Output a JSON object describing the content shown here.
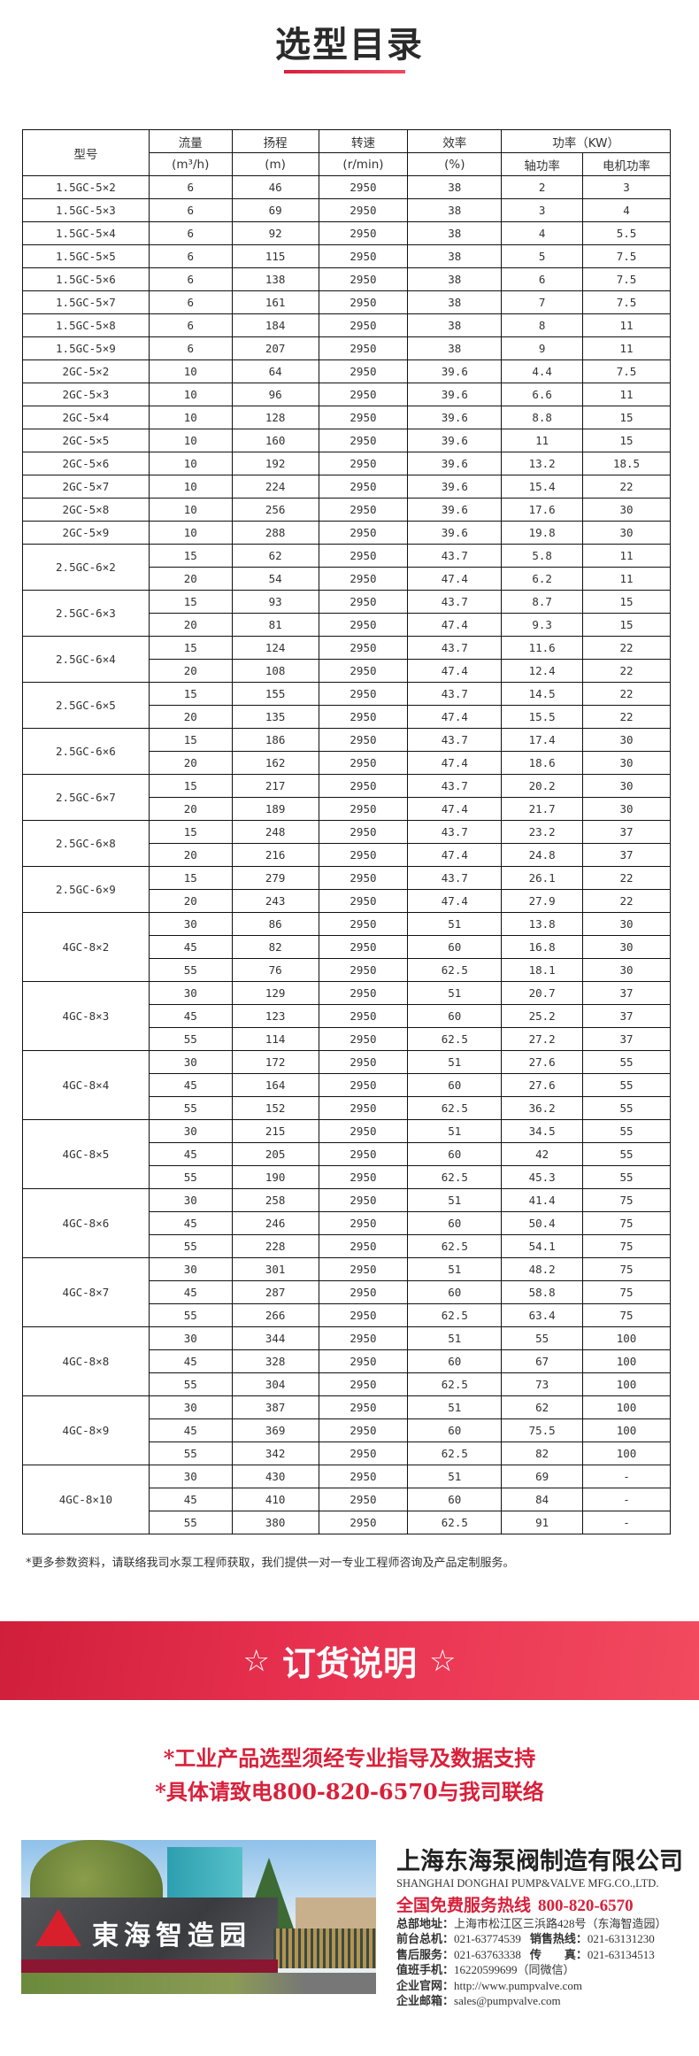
{
  "header": {
    "title": "选型目录",
    "accent_color": "#e0283f"
  },
  "table": {
    "headers": {
      "model": "型号",
      "flow": "流量",
      "head": "扬程",
      "speed": "转速",
      "efficiency": "效率",
      "power": "功率（KW）"
    },
    "units": {
      "flow": "(m³/h)",
      "head": "(m)",
      "speed": "(r/min)",
      "efficiency": "(%)",
      "shaft_power": "轴功率",
      "motor_power": "电机功率"
    },
    "groups": [
      {
        "model": "1.5GC-5×2",
        "rows": [
          [
            "6",
            "46",
            "2950",
            "38",
            "2",
            "3"
          ]
        ]
      },
      {
        "model": "1.5GC-5×3",
        "rows": [
          [
            "6",
            "69",
            "2950",
            "38",
            "3",
            "4"
          ]
        ]
      },
      {
        "model": "1.5GC-5×4",
        "rows": [
          [
            "6",
            "92",
            "2950",
            "38",
            "4",
            "5.5"
          ]
        ]
      },
      {
        "model": "1.5GC-5×5",
        "rows": [
          [
            "6",
            "115",
            "2950",
            "38",
            "5",
            "7.5"
          ]
        ]
      },
      {
        "model": "1.5GC-5×6",
        "rows": [
          [
            "6",
            "138",
            "2950",
            "38",
            "6",
            "7.5"
          ]
        ]
      },
      {
        "model": "1.5GC-5×7",
        "rows": [
          [
            "6",
            "161",
            "2950",
            "38",
            "7",
            "7.5"
          ]
        ]
      },
      {
        "model": "1.5GC-5×8",
        "rows": [
          [
            "6",
            "184",
            "2950",
            "38",
            "8",
            "11"
          ]
        ]
      },
      {
        "model": "1.5GC-5×9",
        "rows": [
          [
            "6",
            "207",
            "2950",
            "38",
            "9",
            "11"
          ]
        ]
      },
      {
        "model": "2GC-5×2",
        "rows": [
          [
            "10",
            "64",
            "2950",
            "39.6",
            "4.4",
            "7.5"
          ]
        ]
      },
      {
        "model": "2GC-5×3",
        "rows": [
          [
            "10",
            "96",
            "2950",
            "39.6",
            "6.6",
            "11"
          ]
        ]
      },
      {
        "model": "2GC-5×4",
        "rows": [
          [
            "10",
            "128",
            "2950",
            "39.6",
            "8.8",
            "15"
          ]
        ]
      },
      {
        "model": "2GC-5×5",
        "rows": [
          [
            "10",
            "160",
            "2950",
            "39.6",
            "11",
            "15"
          ]
        ]
      },
      {
        "model": "2GC-5×6",
        "rows": [
          [
            "10",
            "192",
            "2950",
            "39.6",
            "13.2",
            "18.5"
          ]
        ]
      },
      {
        "model": "2GC-5×7",
        "rows": [
          [
            "10",
            "224",
            "2950",
            "39.6",
            "15.4",
            "22"
          ]
        ]
      },
      {
        "model": "2GC-5×8",
        "rows": [
          [
            "10",
            "256",
            "2950",
            "39.6",
            "17.6",
            "30"
          ]
        ]
      },
      {
        "model": "2GC-5×9",
        "rows": [
          [
            "10",
            "288",
            "2950",
            "39.6",
            "19.8",
            "30"
          ]
        ]
      },
      {
        "model": "2.5GC-6×2",
        "rows": [
          [
            "15",
            "62",
            "2950",
            "43.7",
            "5.8",
            "11"
          ],
          [
            "20",
            "54",
            "2950",
            "47.4",
            "6.2",
            "11"
          ]
        ]
      },
      {
        "model": "2.5GC-6×3",
        "rows": [
          [
            "15",
            "93",
            "2950",
            "43.7",
            "8.7",
            "15"
          ],
          [
            "20",
            "81",
            "2950",
            "47.4",
            "9.3",
            "15"
          ]
        ]
      },
      {
        "model": "2.5GC-6×4",
        "rows": [
          [
            "15",
            "124",
            "2950",
            "43.7",
            "11.6",
            "22"
          ],
          [
            "20",
            "108",
            "2950",
            "47.4",
            "12.4",
            "22"
          ]
        ]
      },
      {
        "model": "2.5GC-6×5",
        "rows": [
          [
            "15",
            "155",
            "2950",
            "43.7",
            "14.5",
            "22"
          ],
          [
            "20",
            "135",
            "2950",
            "47.4",
            "15.5",
            "22"
          ]
        ]
      },
      {
        "model": "2.5GC-6×6",
        "rows": [
          [
            "15",
            "186",
            "2950",
            "43.7",
            "17.4",
            "30"
          ],
          [
            "20",
            "162",
            "2950",
            "47.4",
            "18.6",
            "30"
          ]
        ]
      },
      {
        "model": "2.5GC-6×7",
        "rows": [
          [
            "15",
            "217",
            "2950",
            "43.7",
            "20.2",
            "30"
          ],
          [
            "20",
            "189",
            "2950",
            "47.4",
            "21.7",
            "30"
          ]
        ]
      },
      {
        "model": "2.5GC-6×8",
        "rows": [
          [
            "15",
            "248",
            "2950",
            "43.7",
            "23.2",
            "37"
          ],
          [
            "20",
            "216",
            "2950",
            "47.4",
            "24.8",
            "37"
          ]
        ]
      },
      {
        "model": "2.5GC-6×9",
        "rows": [
          [
            "15",
            "279",
            "2950",
            "43.7",
            "26.1",
            "22"
          ],
          [
            "20",
            "243",
            "2950",
            "47.4",
            "27.9",
            "22"
          ]
        ]
      },
      {
        "model": "4GC-8×2",
        "rows": [
          [
            "30",
            "86",
            "2950",
            "51",
            "13.8",
            "30"
          ],
          [
            "45",
            "82",
            "2950",
            "60",
            "16.8",
            "30"
          ],
          [
            "55",
            "76",
            "2950",
            "62.5",
            "18.1",
            "30"
          ]
        ]
      },
      {
        "model": "4GC-8×3",
        "rows": [
          [
            "30",
            "129",
            "2950",
            "51",
            "20.7",
            "37"
          ],
          [
            "45",
            "123",
            "2950",
            "60",
            "25.2",
            "37"
          ],
          [
            "55",
            "114",
            "2950",
            "62.5",
            "27.2",
            "37"
          ]
        ]
      },
      {
        "model": "4GC-8×4",
        "rows": [
          [
            "30",
            "172",
            "2950",
            "51",
            "27.6",
            "55"
          ],
          [
            "45",
            "164",
            "2950",
            "60",
            "27.6",
            "55"
          ],
          [
            "55",
            "152",
            "2950",
            "62.5",
            "36.2",
            "55"
          ]
        ]
      },
      {
        "model": "4GC-8×5",
        "rows": [
          [
            "30",
            "215",
            "2950",
            "51",
            "34.5",
            "55"
          ],
          [
            "45",
            "205",
            "2950",
            "60",
            "42",
            "55"
          ],
          [
            "55",
            "190",
            "2950",
            "62.5",
            "45.3",
            "55"
          ]
        ]
      },
      {
        "model": "4GC-8×6",
        "rows": [
          [
            "30",
            "258",
            "2950",
            "51",
            "41.4",
            "75"
          ],
          [
            "45",
            "246",
            "2950",
            "60",
            "50.4",
            "75"
          ],
          [
            "55",
            "228",
            "2950",
            "62.5",
            "54.1",
            "75"
          ]
        ]
      },
      {
        "model": "4GC-8×7",
        "rows": [
          [
            "30",
            "301",
            "2950",
            "51",
            "48.2",
            "75"
          ],
          [
            "45",
            "287",
            "2950",
            "60",
            "58.8",
            "75"
          ],
          [
            "55",
            "266",
            "2950",
            "62.5",
            "63.4",
            "75"
          ]
        ]
      },
      {
        "model": "4GC-8×8",
        "rows": [
          [
            "30",
            "344",
            "2950",
            "51",
            "55",
            "100"
          ],
          [
            "45",
            "328",
            "2950",
            "60",
            "67",
            "100"
          ],
          [
            "55",
            "304",
            "2950",
            "62.5",
            "73",
            "100"
          ]
        ]
      },
      {
        "model": "4GC-8×9",
        "rows": [
          [
            "30",
            "387",
            "2950",
            "51",
            "62",
            "100"
          ],
          [
            "45",
            "369",
            "2950",
            "60",
            "75.5",
            "100"
          ],
          [
            "55",
            "342",
            "2950",
            "62.5",
            "82",
            "100"
          ]
        ]
      },
      {
        "model": "4GC-8×10",
        "rows": [
          [
            "30",
            "430",
            "2950",
            "51",
            "69",
            "-"
          ],
          [
            "45",
            "410",
            "2950",
            "60",
            "84",
            "-"
          ],
          [
            "55",
            "380",
            "2950",
            "62.5",
            "91",
            "-"
          ]
        ]
      }
    ]
  },
  "note": "*更多参数资料，请联络我司水泵工程师获取，我们提供一对一专业工程师咨询及产品定制服务。",
  "banner": {
    "star": "☆",
    "title": "订货说明",
    "color": "#e02c46"
  },
  "order_notes": [
    "*工业产品选型须经专业指导及数据支持",
    "*具体请致电800-820-6570与我司联络"
  ],
  "photo": {
    "sign_text": "東海智造园"
  },
  "company": {
    "name": "上海东海泵阀制造有限公司",
    "name_en": "SHANGHAI DONGHAI PUMP&VALVE MFG.CO.,LTD.",
    "hotline_label": "全国免费服务热线",
    "hotline": "800-820-6570",
    "address_label": "总部地址：",
    "address": "上海市松江区三浜路428号（东海智造园）",
    "front_label": "前台总机：",
    "front": "021-63774539",
    "sales_label": "销售热线：",
    "sales": "021-63131230",
    "service_label": "售后服务：",
    "service": "021-63763338",
    "fax_label": "传　　真：",
    "fax": "021-63134513",
    "mobile_label": "值班手机：",
    "mobile": "16220599699（同微信）",
    "web_label": "企业官网：",
    "web": "http://www.pumpvalve.com",
    "email_label": "企业邮箱：",
    "email": "sales@pumpvalve.com"
  }
}
